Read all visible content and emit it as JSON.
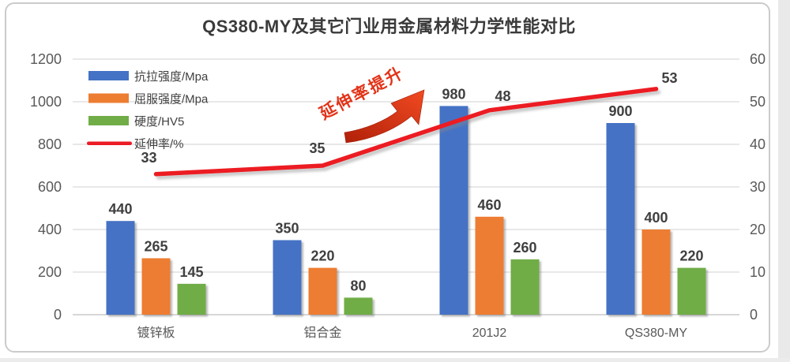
{
  "window": {
    "background": "#ffffff",
    "card_border": "#cbcbcb"
  },
  "chart_data": {
    "type": "bar",
    "subtype": "bar-line-combo",
    "title": "QS380-MY及其它门业用金属材料力学性能对比",
    "categories": [
      "镀锌板",
      "铝合金",
      "201J2",
      "QS380-MY"
    ],
    "series": [
      {
        "name": "抗拉强度/Mpa",
        "type": "bar",
        "axis": "left",
        "color": "#4472C4",
        "values": [
          440,
          350,
          980,
          900
        ]
      },
      {
        "name": "屈服强度/Mpa",
        "type": "bar",
        "axis": "left",
        "color": "#ED7D31",
        "values": [
          265,
          220,
          460,
          400
        ]
      },
      {
        "name": "硬度/HV5",
        "type": "bar",
        "axis": "left",
        "color": "#70AD47",
        "values": [
          145,
          80,
          260,
          220
        ]
      },
      {
        "name": "延伸率/%",
        "type": "line",
        "axis": "right",
        "color": "#EC1C24",
        "values": [
          33,
          35,
          48,
          53
        ]
      }
    ],
    "left_axis": {
      "min": 0,
      "max": 1200,
      "ticks": [
        0,
        200,
        400,
        600,
        800,
        1000,
        1200
      ]
    },
    "right_axis": {
      "min": 0,
      "max": 60,
      "ticks": [
        0,
        10,
        20,
        30,
        40,
        50,
        60
      ]
    },
    "grid": true,
    "data_labels": true,
    "legend": {
      "position": "top-left"
    },
    "annotation": {
      "text": "延伸率提升",
      "color": "#E23318",
      "arrow": "red-up-right-arrow"
    },
    "text_colors": {
      "axis": "#595959",
      "data_label": "#3f3f3f",
      "legend": "#404040"
    }
  }
}
